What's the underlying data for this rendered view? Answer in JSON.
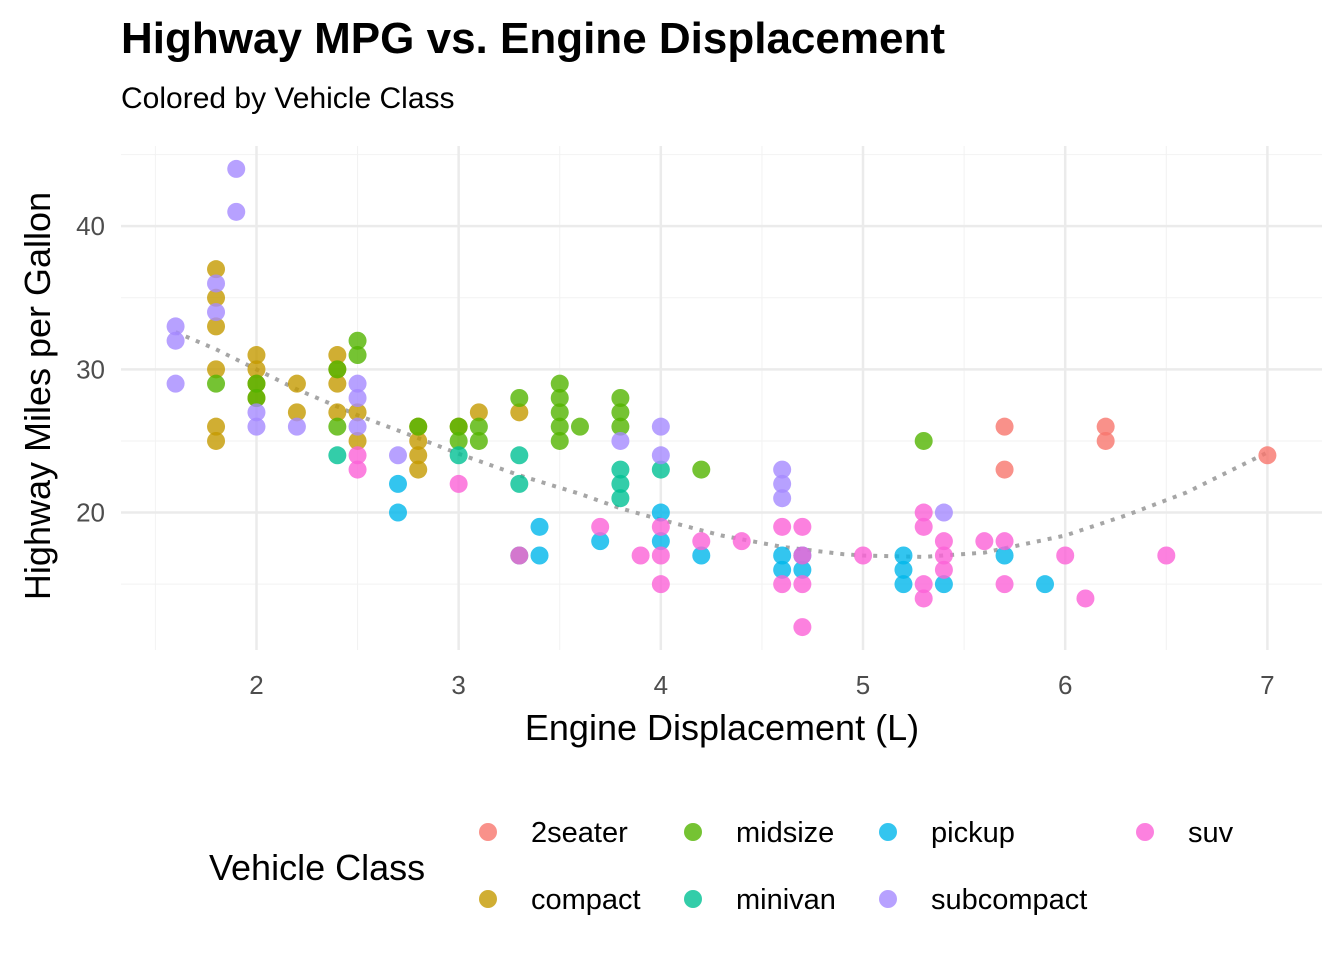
{
  "chart_data": {
    "type": "scatter",
    "title": "Highway MPG vs. Engine Displacement",
    "subtitle": "Colored by Vehicle Class",
    "xlabel": "Engine Displacement (L)",
    "ylabel": "Highway Miles per Gallon",
    "xlim": [
      1.33,
      7.27
    ],
    "ylim": [
      10.4,
      45.6
    ],
    "x_ticks": [
      2,
      3,
      4,
      5,
      6,
      7
    ],
    "y_ticks": [
      20,
      30,
      40
    ],
    "grid": true,
    "legend": {
      "title": "Vehicle Class",
      "placement": "bottom",
      "items": [
        {
          "name": "2seater",
          "color": "#F8766D"
        },
        {
          "name": "compact",
          "color": "#C49A00"
        },
        {
          "name": "midsize",
          "color": "#53B400"
        },
        {
          "name": "minivan",
          "color": "#00C094"
        },
        {
          "name": "pickup",
          "color": "#00B6EB"
        },
        {
          "name": "subcompact",
          "color": "#A58AFF"
        },
        {
          "name": "suv",
          "color": "#FB61D7"
        }
      ]
    },
    "trend": {
      "style": "dotted",
      "color": "#A6A6A6",
      "points": [
        [
          1.6,
          32.6
        ],
        [
          1.8,
          31.4
        ],
        [
          2.0,
          30.0
        ],
        [
          2.2,
          28.6
        ],
        [
          2.5,
          26.8
        ],
        [
          2.8,
          25.2
        ],
        [
          3.0,
          24.1
        ],
        [
          3.3,
          22.6
        ],
        [
          3.6,
          21.3
        ],
        [
          3.8,
          20.3
        ],
        [
          4.0,
          19.5
        ],
        [
          4.3,
          18.4
        ],
        [
          4.6,
          17.6
        ],
        [
          4.9,
          17.1
        ],
        [
          5.0,
          17.0
        ],
        [
          5.3,
          16.9
        ],
        [
          5.6,
          17.2
        ],
        [
          6.0,
          18.4
        ],
        [
          6.3,
          19.8
        ],
        [
          6.6,
          21.4
        ],
        [
          7.0,
          24.2
        ]
      ]
    },
    "series": [
      {
        "name": "2seater",
        "color": "#F8766D",
        "points": [
          [
            5.7,
            26
          ],
          [
            5.7,
            23
          ],
          [
            6.2,
            26
          ],
          [
            6.2,
            25
          ],
          [
            7.0,
            24
          ]
        ]
      },
      {
        "name": "compact",
        "color": "#C49A00",
        "points": [
          [
            1.8,
            37
          ],
          [
            1.8,
            35
          ],
          [
            1.8,
            33
          ],
          [
            1.8,
            30
          ],
          [
            1.8,
            26
          ],
          [
            1.8,
            25
          ],
          [
            2.0,
            31
          ],
          [
            2.0,
            30
          ],
          [
            2.0,
            29
          ],
          [
            2.0,
            28
          ],
          [
            2.2,
            29
          ],
          [
            2.2,
            27
          ],
          [
            2.4,
            31
          ],
          [
            2.4,
            30
          ],
          [
            2.4,
            29
          ],
          [
            2.4,
            27
          ],
          [
            2.5,
            27
          ],
          [
            2.5,
            25
          ],
          [
            2.8,
            26
          ],
          [
            2.8,
            25
          ],
          [
            2.8,
            24
          ],
          [
            2.8,
            23
          ],
          [
            3.0,
            26
          ],
          [
            3.1,
            27
          ],
          [
            3.3,
            27
          ]
        ]
      },
      {
        "name": "midsize",
        "color": "#53B400",
        "points": [
          [
            1.8,
            29
          ],
          [
            2.0,
            29
          ],
          [
            2.0,
            28
          ],
          [
            2.4,
            30
          ],
          [
            2.4,
            26
          ],
          [
            2.5,
            32
          ],
          [
            2.5,
            31
          ],
          [
            2.8,
            26
          ],
          [
            3.0,
            26
          ],
          [
            3.0,
            25
          ],
          [
            3.1,
            26
          ],
          [
            3.1,
            25
          ],
          [
            3.3,
            28
          ],
          [
            3.5,
            29
          ],
          [
            3.5,
            28
          ],
          [
            3.5,
            27
          ],
          [
            3.5,
            26
          ],
          [
            3.5,
            25
          ],
          [
            3.6,
            26
          ],
          [
            3.8,
            28
          ],
          [
            3.8,
            27
          ],
          [
            3.8,
            26
          ],
          [
            4.2,
            23
          ],
          [
            5.3,
            25
          ]
        ]
      },
      {
        "name": "minivan",
        "color": "#00C094",
        "points": [
          [
            2.4,
            24
          ],
          [
            3.0,
            24
          ],
          [
            3.3,
            24
          ],
          [
            3.3,
            22
          ],
          [
            3.3,
            17
          ],
          [
            3.8,
            23
          ],
          [
            3.8,
            22
          ],
          [
            3.8,
            21
          ],
          [
            4.0,
            23
          ]
        ]
      },
      {
        "name": "pickup",
        "color": "#00B6EB",
        "points": [
          [
            2.7,
            22
          ],
          [
            2.7,
            20
          ],
          [
            3.4,
            19
          ],
          [
            3.4,
            17
          ],
          [
            3.7,
            18
          ],
          [
            4.0,
            20
          ],
          [
            4.0,
            18
          ],
          [
            4.2,
            17
          ],
          [
            4.6,
            17
          ],
          [
            4.6,
            16
          ],
          [
            4.7,
            17
          ],
          [
            4.7,
            16
          ],
          [
            5.2,
            17
          ],
          [
            5.2,
            16
          ],
          [
            5.2,
            15
          ],
          [
            5.4,
            15
          ],
          [
            5.7,
            17
          ],
          [
            5.9,
            15
          ]
        ]
      },
      {
        "name": "subcompact",
        "color": "#A58AFF",
        "points": [
          [
            1.6,
            33
          ],
          [
            1.6,
            32
          ],
          [
            1.6,
            29
          ],
          [
            1.8,
            36
          ],
          [
            1.8,
            34
          ],
          [
            1.9,
            44
          ],
          [
            1.9,
            41
          ],
          [
            2.0,
            27
          ],
          [
            2.0,
            26
          ],
          [
            2.2,
            26
          ],
          [
            2.5,
            29
          ],
          [
            2.5,
            28
          ],
          [
            2.5,
            26
          ],
          [
            2.7,
            24
          ],
          [
            3.8,
            25
          ],
          [
            4.0,
            26
          ],
          [
            4.0,
            24
          ],
          [
            4.6,
            23
          ],
          [
            4.6,
            22
          ],
          [
            4.6,
            21
          ],
          [
            5.4,
            20
          ]
        ]
      },
      {
        "name": "suv",
        "color": "#FB61D7",
        "points": [
          [
            2.5,
            24
          ],
          [
            2.5,
            23
          ],
          [
            3.0,
            22
          ],
          [
            3.3,
            17
          ],
          [
            3.7,
            19
          ],
          [
            3.9,
            17
          ],
          [
            4.0,
            19
          ],
          [
            4.0,
            17
          ],
          [
            4.0,
            15
          ],
          [
            4.2,
            18
          ],
          [
            4.4,
            18
          ],
          [
            4.6,
            19
          ],
          [
            4.6,
            15
          ],
          [
            4.7,
            19
          ],
          [
            4.7,
            17
          ],
          [
            4.7,
            15
          ],
          [
            4.7,
            12
          ],
          [
            5.0,
            17
          ],
          [
            5.3,
            20
          ],
          [
            5.3,
            19
          ],
          [
            5.3,
            15
          ],
          [
            5.3,
            14
          ],
          [
            5.4,
            18
          ],
          [
            5.4,
            17
          ],
          [
            5.4,
            16
          ],
          [
            5.6,
            18
          ],
          [
            5.7,
            18
          ],
          [
            5.7,
            15
          ],
          [
            6.0,
            17
          ],
          [
            6.1,
            14
          ],
          [
            6.5,
            17
          ]
        ]
      }
    ]
  }
}
